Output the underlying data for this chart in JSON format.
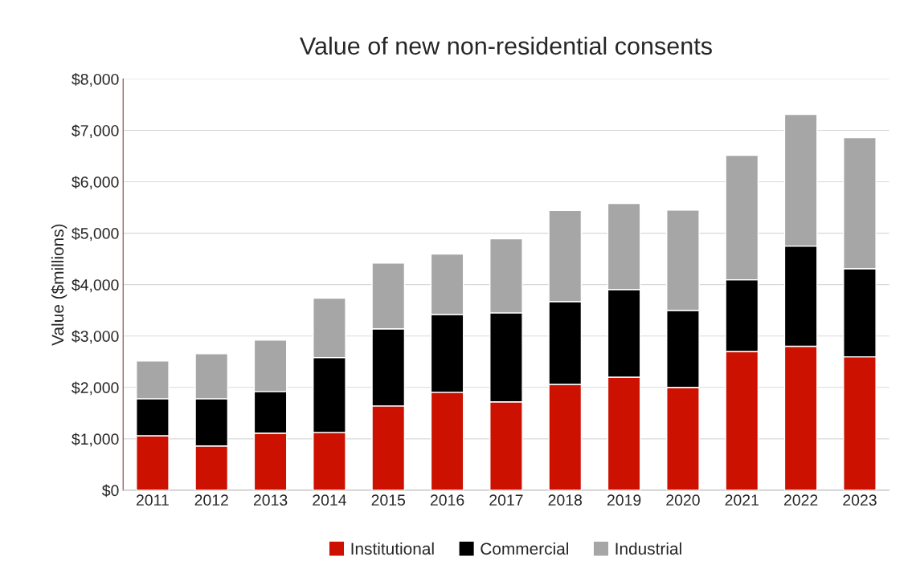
{
  "chart_data": {
    "type": "bar",
    "title": "Value of new non-residential consents",
    "ylabel": "Value ($millions)",
    "categories": [
      "2011",
      "2012",
      "2013",
      "2014",
      "2015",
      "2016",
      "2017",
      "2018",
      "2019",
      "2020",
      "2021",
      "2022",
      "2023"
    ],
    "stacked": true,
    "series": [
      {
        "name": "Institutional",
        "color": "#cc1100",
        "values": [
          1060,
          860,
          1110,
          1125,
          1640,
          1905,
          1720,
          2060,
          2200,
          2000,
          2700,
          2800,
          2595
        ]
      },
      {
        "name": "Commercial",
        "color": "#000000",
        "values": [
          720,
          920,
          810,
          1455,
          1500,
          1515,
          1730,
          1610,
          1705,
          1500,
          1395,
          1950,
          1715
        ]
      },
      {
        "name": "Industrial",
        "color": "#a6a6a6",
        "values": [
          735,
          875,
          1000,
          1155,
          1280,
          1175,
          1440,
          1770,
          1675,
          1950,
          2420,
          2560,
          2550
        ]
      }
    ],
    "ylim": [
      0,
      8000
    ],
    "yticks": [
      {
        "value": 0,
        "label": "$0"
      },
      {
        "value": 1000,
        "label": "$1,000"
      },
      {
        "value": 2000,
        "label": "$2,000"
      },
      {
        "value": 3000,
        "label": "$3,000"
      },
      {
        "value": 4000,
        "label": "$4,000"
      },
      {
        "value": 5000,
        "label": "$5,000"
      },
      {
        "value": 6000,
        "label": "$6,000"
      },
      {
        "value": 7000,
        "label": "$7,000"
      },
      {
        "value": 8000,
        "label": "$8,000"
      }
    ],
    "grid": "y",
    "legend": "bottom"
  }
}
